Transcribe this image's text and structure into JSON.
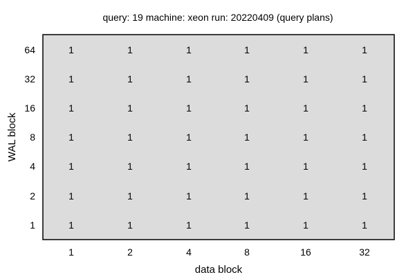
{
  "chart_data": {
    "type": "heatmap",
    "title": "query: 19  machine: xeon  run: 20220409  (query plans)",
    "xlabel": "data block",
    "ylabel": "WAL block",
    "x_categories": [
      "1",
      "2",
      "4",
      "8",
      "16",
      "32"
    ],
    "y_categories": [
      "64",
      "32",
      "16",
      "8",
      "4",
      "2",
      "1"
    ],
    "values": [
      [
        1,
        1,
        1,
        1,
        1,
        1
      ],
      [
        1,
        1,
        1,
        1,
        1,
        1
      ],
      [
        1,
        1,
        1,
        1,
        1,
        1
      ],
      [
        1,
        1,
        1,
        1,
        1,
        1
      ],
      [
        1,
        1,
        1,
        1,
        1,
        1
      ],
      [
        1,
        1,
        1,
        1,
        1,
        1
      ],
      [
        1,
        1,
        1,
        1,
        1,
        1
      ]
    ],
    "grid": false,
    "colors": {
      "plot_background": "#dcdcdc",
      "border": "#000000",
      "text": "#000000"
    }
  }
}
